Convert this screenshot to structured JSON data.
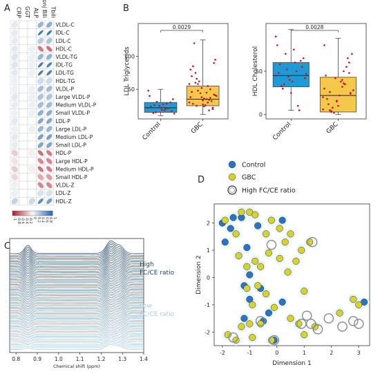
{
  "panel_labels": [
    "A",
    "B",
    "C",
    "D"
  ],
  "chart_data": [
    {
      "panel": "A",
      "type": "heatmap",
      "columns": [
        "CRP",
        "GGT",
        "ALP",
        "Conj Bili",
        "Tbili"
      ],
      "rows": [
        "VLDL-C",
        "IDL-C",
        "LDL-C",
        "HDL-C",
        "VLDL-TG",
        "IDL-TG",
        "LDL-TG",
        "HDL-TG",
        "VLDL-P",
        "Large VLDL-P",
        "Medium VLDL-P",
        "Small VLDL-P",
        "LDL-P",
        "Large LDL-P",
        "Medium LDL-P",
        "Small LDL-P",
        "HDL-P",
        "Large HDL-P",
        "Medium HDL-P",
        "Small HDL-P",
        "VLDL-Z",
        "LDL-Z",
        "HDL-Z"
      ],
      "values": [
        [
          0.1,
          0,
          0,
          0.45,
          0.5
        ],
        [
          0.08,
          0,
          0,
          0.9,
          0.85
        ],
        [
          0.08,
          0,
          0,
          0.3,
          0.35
        ],
        [
          0.1,
          0,
          0.05,
          -0.55,
          -0.6
        ],
        [
          0.12,
          0,
          0.05,
          0.45,
          0.45
        ],
        [
          0.12,
          0,
          0.05,
          0.85,
          0.8
        ],
        [
          0.1,
          0,
          0.05,
          0.85,
          0.8
        ],
        [
          0.05,
          0,
          0,
          0.2,
          0.2
        ],
        [
          0.05,
          0,
          0.05,
          0.4,
          0.4
        ],
        [
          0.1,
          0,
          0.05,
          0.35,
          0.35
        ],
        [
          0.08,
          0,
          0.05,
          0.4,
          0.4
        ],
        [
          0.05,
          0,
          0.05,
          0.5,
          0.5
        ],
        [
          0.1,
          0,
          0,
          0.55,
          0.55
        ],
        [
          0.05,
          0,
          0.05,
          0.45,
          0.45
        ],
        [
          0.1,
          0,
          0,
          0.6,
          0.6
        ],
        [
          0.08,
          0,
          0,
          0.55,
          0.55
        ],
        [
          -0.2,
          0,
          -0.05,
          -0.6,
          -0.55
        ],
        [
          -0.1,
          0,
          0,
          -0.5,
          -0.5
        ],
        [
          -0.2,
          0,
          -0.05,
          -0.6,
          -0.55
        ],
        [
          -0.15,
          0,
          0,
          -0.35,
          -0.4
        ],
        [
          0.05,
          0,
          0,
          -0.5,
          -0.5
        ],
        [
          0.05,
          0,
          0,
          0.15,
          0.15
        ],
        [
          0.25,
          0,
          0.2,
          0.7,
          0.6
        ]
      ],
      "colorbar": {
        "min": -1,
        "max": 1,
        "ticks": [
          "-1",
          "-0.8",
          "-0.6",
          "-0.4",
          "-0.2",
          "0",
          "0.2",
          "0.4",
          "0.6",
          "0.8",
          "1"
        ]
      }
    },
    {
      "panel": "B-left",
      "type": "box",
      "categories": [
        "Control",
        "GBC"
      ],
      "ylabel": "LDL Triglycerids",
      "yticks": [
        50,
        100
      ],
      "ylim": [
        5,
        150
      ],
      "pvalue": "0.0029",
      "boxes": [
        {
          "q1": 15,
          "median": 22,
          "q3": 30,
          "whisker_low": 10,
          "whisker_high": 50,
          "color": "#1f9ad6"
        },
        {
          "q1": 25,
          "median": 35,
          "q3": 55,
          "whisker_low": 12,
          "whisker_high": 125,
          "color": "#f5c84b"
        }
      ],
      "points": [
        [
          22,
          18,
          14,
          30,
          25,
          48,
          20,
          26,
          17,
          22,
          40,
          28,
          15,
          35,
          19,
          24,
          21,
          31,
          13,
          27
        ],
        [
          30,
          45,
          60,
          22,
          38,
          80,
          55,
          25,
          42,
          33,
          70,
          18,
          48,
          95,
          36,
          28,
          50,
          62,
          40,
          26,
          120,
          32,
          44,
          58,
          35,
          75,
          20,
          52,
          38,
          30,
          66,
          90,
          27,
          46,
          34,
          58,
          41,
          24,
          85,
          37
        ]
      ]
    },
    {
      "panel": "B-right",
      "type": "box",
      "categories": [
        "Control",
        "GBC"
      ],
      "ylabel": "HDL Cholesterol",
      "yticks": [
        0,
        50
      ],
      "ylim": [
        -5,
        105
      ],
      "pvalue": "0.0028",
      "boxes": [
        {
          "q1": 32,
          "median": 45,
          "q3": 60,
          "whisker_low": 5,
          "whisker_high": 98,
          "color": "#1f9ad6"
        },
        {
          "q1": 3,
          "median": 22,
          "q3": 43,
          "whisker_low": 0,
          "whisker_high": 88,
          "color": "#f5c84b"
        }
      ],
      "points": [
        [
          45,
          60,
          30,
          55,
          40,
          80,
          50,
          35,
          65,
          25,
          48,
          10,
          70,
          42,
          38,
          58,
          5,
          52,
          47,
          75,
          33,
          62,
          44,
          90
        ],
        [
          20,
          40,
          5,
          60,
          15,
          30,
          50,
          3,
          25,
          10,
          45,
          35,
          8,
          70,
          22,
          18,
          55,
          2,
          28,
          38,
          12,
          65,
          42,
          6,
          32,
          26,
          48,
          16,
          80,
          36,
          4,
          24
        ]
      ]
    },
    {
      "panel": "C",
      "type": "line",
      "xlabel": "Chemical shift (ppm)",
      "xticks": [
        "0.8",
        "0.9",
        "1.0",
        "1.1",
        "1.2",
        "1.3",
        "1.4"
      ],
      "xrange": [
        0.77,
        1.4
      ],
      "spectra_count": 60,
      "peaks_ppm": [
        0.85,
        1.25
      ],
      "label_high": [
        "High",
        "FC/CE ratio"
      ],
      "label_low": [
        "Low",
        "FC/CE ratio"
      ],
      "color_high": "#1c3f63",
      "color_low": "#a8cbe6"
    },
    {
      "panel": "D",
      "type": "scatter",
      "xlabel": "Dimension 1",
      "ylabel": "Dimension 2",
      "xticks": [
        -2,
        -1,
        0,
        1,
        2,
        3
      ],
      "yticks": [
        -2,
        -1,
        0,
        1,
        2
      ],
      "xlim": [
        -2.3,
        3.4
      ],
      "ylim": [
        -2.5,
        2.7
      ],
      "legend": [
        "Control",
        "GBC",
        "High FC/CE ratio"
      ],
      "legend_placement": "top-left",
      "colors": {
        "Control": "#2b73c4",
        "GBC": "#d6d232",
        "ring": "#888888"
      },
      "series": [
        {
          "name": "Control",
          "points": [
            [
              -2,
              2
            ],
            [
              -1.9,
              1.3
            ],
            [
              -1.7,
              1.8
            ],
            [
              -1.6,
              2.2
            ],
            [
              -1.3,
              2.2
            ],
            [
              -1.1,
              1.1
            ],
            [
              -1.0,
              0.1
            ],
            [
              -0.7,
              1.9
            ],
            [
              -0.6,
              -0.4
            ],
            [
              -0.5,
              -1.6
            ],
            [
              -1.0,
              -0.8
            ],
            [
              -1.2,
              -1.5
            ],
            [
              0.2,
              2.1
            ],
            [
              0.2,
              -0.9
            ],
            [
              -0.1,
              -2.3
            ],
            [
              3.2,
              -0.9
            ],
            [
              -1.2,
              -0.3
            ],
            [
              -0.3,
              -1.3
            ]
          ]
        },
        {
          "name": "GBC",
          "points": [
            [
              -1.9,
              2.1
            ],
            [
              -1.5,
              1.6
            ],
            [
              -1.3,
              2.4
            ],
            [
              -1.0,
              2.4
            ],
            [
              -0.8,
              2.3
            ],
            [
              -0.4,
              1.6
            ],
            [
              -0.2,
              2.1
            ],
            [
              0.1,
              1.8
            ],
            [
              0.3,
              1.3
            ],
            [
              0.5,
              1.6
            ],
            [
              0.9,
              1.0
            ],
            [
              1.2,
              1.3
            ],
            [
              0.7,
              0.6
            ],
            [
              -1.4,
              0.8
            ],
            [
              -1.1,
              0.4
            ],
            [
              -0.8,
              0.6
            ],
            [
              -0.6,
              0.4
            ],
            [
              -0.3,
              0.9
            ],
            [
              0.1,
              0.7
            ],
            [
              0.4,
              0.2
            ],
            [
              -1.1,
              -0.4
            ],
            [
              -0.7,
              -0.3
            ],
            [
              -0.4,
              -0.6
            ],
            [
              -0.1,
              -1.1
            ],
            [
              -0.9,
              -1.0
            ],
            [
              -1.3,
              -1.8
            ],
            [
              -1.8,
              -2.1
            ],
            [
              -1.5,
              -2.3
            ],
            [
              -1.0,
              -1.7
            ],
            [
              -0.6,
              -1.7
            ],
            [
              -0.2,
              -2.3
            ],
            [
              0.5,
              -1.5
            ],
            [
              1.0,
              -0.5
            ],
            [
              1.4,
              -1.8
            ],
            [
              2.3,
              -1.3
            ],
            [
              2.8,
              -0.8
            ],
            [
              3.0,
              -1.0
            ],
            [
              0.8,
              -1.7
            ],
            [
              1.0,
              -2.1
            ],
            [
              -0.9,
              -2.2
            ]
          ]
        },
        {
          "name": "High FC/CE ratio",
          "points": [
            [
              -0.2,
              1.2
            ],
            [
              1.3,
              1.3
            ],
            [
              -1.6,
              -2.2
            ],
            [
              -0.6,
              -1.6
            ],
            [
              -0.1,
              -2.3
            ],
            [
              0.9,
              -1.7
            ],
            [
              1.1,
              -1.4
            ],
            [
              1.25,
              -1.7
            ],
            [
              1.5,
              -1.9
            ],
            [
              1.9,
              -1.5
            ],
            [
              2.4,
              -1.8
            ],
            [
              2.8,
              -1.6
            ],
            [
              3.0,
              -1.7
            ]
          ]
        }
      ]
    }
  ]
}
